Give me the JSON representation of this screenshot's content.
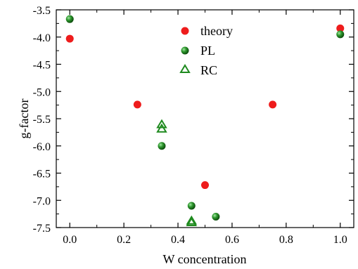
{
  "chart_data": {
    "type": "scatter",
    "title": "",
    "xlabel": "W concentration",
    "ylabel": "g-factor",
    "xlim": [
      -0.05,
      1.05
    ],
    "ylim": [
      -7.5,
      -3.5
    ],
    "xticks": [
      0.0,
      0.2,
      0.4,
      0.6,
      0.8,
      1.0
    ],
    "xtick_labels": [
      "0.0",
      "0.2",
      "0.4",
      "0.6",
      "0.8",
      "1.0"
    ],
    "yticks": [
      -3.5,
      -4.0,
      -4.5,
      -5.0,
      -5.5,
      -6.0,
      -6.5,
      -7.0,
      -7.5
    ],
    "ytick_labels": [
      "-3.5",
      "-4.0",
      "-4.5",
      "-5.0",
      "-5.5",
      "-6.0",
      "-6.5",
      "-7.0",
      "-7.5"
    ],
    "grid": false,
    "legend_position": "top-center",
    "series": [
      {
        "name": "theory",
        "marker": "filled-circle",
        "color": "#ee1c1c",
        "points": [
          {
            "x": 0.0,
            "y": -4.03
          },
          {
            "x": 0.25,
            "y": -5.24
          },
          {
            "x": 0.5,
            "y": -6.72
          },
          {
            "x": 0.75,
            "y": -5.24
          },
          {
            "x": 1.0,
            "y": -3.84
          }
        ]
      },
      {
        "name": "PL",
        "marker": "shaded-sphere",
        "color": "#1f8a1f",
        "points": [
          {
            "x": 0.0,
            "y": -3.67
          },
          {
            "x": 0.34,
            "y": -6.0
          },
          {
            "x": 0.45,
            "y": -7.1
          },
          {
            "x": 0.54,
            "y": -7.3
          },
          {
            "x": 1.0,
            "y": -3.95
          }
        ]
      },
      {
        "name": "RC",
        "marker": "open-triangle",
        "color": "#1f8a1f",
        "points": [
          {
            "x": 0.34,
            "y": -5.61
          },
          {
            "x": 0.34,
            "y": -5.69
          },
          {
            "x": 0.45,
            "y": -7.38
          },
          {
            "x": 0.45,
            "y": -7.41
          }
        ]
      }
    ]
  }
}
